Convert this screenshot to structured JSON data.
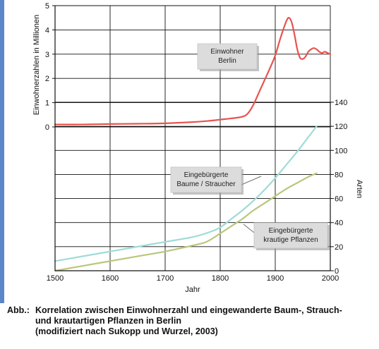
{
  "chart_data": {
    "type": "line",
    "xlabel": "Jahr",
    "xlim": [
      1500,
      2000
    ],
    "x_ticks": [
      "1500",
      "1600",
      "1700",
      "1800",
      "1900",
      "2000"
    ],
    "left_axis": {
      "label": "Einwohnerzahlen in Millionen",
      "ylim": [
        0,
        5
      ],
      "ticks": [
        "0",
        "1",
        "2",
        "3",
        "4",
        "5"
      ]
    },
    "right_axis": {
      "label": "Arten",
      "ylim": [
        0,
        140
      ],
      "ticks": [
        "0",
        "20",
        "40",
        "60",
        "80",
        "100",
        "120",
        "140"
      ]
    },
    "grid": true,
    "series": [
      {
        "name": "Einwohner Berlin",
        "label_lines": [
          "Einwohner",
          "Berlin"
        ],
        "axis": "left",
        "color": "#e8534f",
        "x": [
          1500,
          1550,
          1600,
          1650,
          1700,
          1750,
          1780,
          1800,
          1820,
          1840,
          1850,
          1860,
          1870,
          1880,
          1890,
          1900,
          1910,
          1920,
          1925,
          1930,
          1935,
          1940,
          1945,
          1950,
          1955,
          1960,
          1965,
          1970,
          1975,
          1980,
          1985,
          1990,
          1995,
          2000
        ],
        "y": [
          0.1,
          0.1,
          0.12,
          0.13,
          0.15,
          0.2,
          0.25,
          0.3,
          0.35,
          0.42,
          0.55,
          0.9,
          1.4,
          1.9,
          2.4,
          2.95,
          3.7,
          4.35,
          4.5,
          4.3,
          3.8,
          3.2,
          2.85,
          2.8,
          2.9,
          3.1,
          3.2,
          3.25,
          3.2,
          3.1,
          3.05,
          3.1,
          3.05,
          3.0
        ]
      },
      {
        "name": "Eingebürgerte Baume / Straucher",
        "label_lines": [
          "Eingebürgerte",
          "Baume  / Straucher"
        ],
        "axis": "right",
        "color": "#9edcd6",
        "x": [
          1500,
          1550,
          1600,
          1650,
          1700,
          1750,
          1780,
          1800,
          1820,
          1840,
          1860,
          1880,
          1900,
          1920,
          1940,
          1960,
          1975
        ],
        "y": [
          8,
          12,
          16,
          20,
          24,
          28,
          32,
          36,
          43,
          50,
          58,
          67,
          77,
          88,
          99,
          111,
          120
        ]
      },
      {
        "name": "Eingebürgerte krautige Pflanzen",
        "label_lines": [
          "Eingebürgerte",
          "krautige  Pflanzen"
        ],
        "axis": "right",
        "color": "#b8c77b",
        "x": [
          1500,
          1550,
          1600,
          1650,
          1700,
          1750,
          1775,
          1800,
          1820,
          1840,
          1860,
          1880,
          1900,
          1920,
          1940,
          1960,
          1975
        ],
        "y": [
          0,
          4,
          8,
          12,
          16,
          21,
          24,
          31,
          37,
          43,
          50,
          56,
          62,
          68,
          73,
          78,
          81
        ]
      }
    ]
  },
  "caption": {
    "prefix": "Abb.:",
    "lines": [
      "Korrelation zwischen Einwohnerzahl und eingewanderte Baum-, Strauch-",
      "und krautartigen Pflanzen in Berlin",
      "(modifiziert nach Sukopp und Wurzel, 2003)"
    ]
  }
}
